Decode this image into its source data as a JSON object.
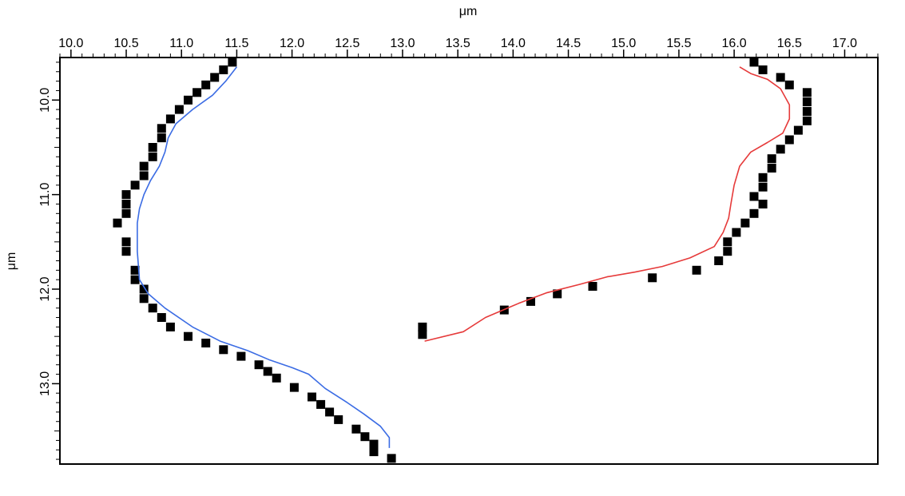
{
  "chart_data": {
    "type": "scatter",
    "x_axis": {
      "label": "μm",
      "position": "top",
      "range": [
        9.9,
        17.3
      ],
      "ticks": [
        "10.0",
        "10.5",
        "11.0",
        "11.5",
        "12.0",
        "12.5",
        "13.0",
        "13.5",
        "14.0",
        "14.5",
        "15.0",
        "15.5",
        "16.0",
        "16.5",
        "17.0"
      ]
    },
    "y_axis": {
      "label": "μm",
      "position": "left",
      "inverted": true,
      "range": [
        9.55,
        13.85
      ],
      "ticks": [
        "10.0",
        "11.0",
        "12.0",
        "13.0"
      ]
    },
    "grid": false,
    "series": [
      {
        "kind": "points",
        "color": "#000000",
        "x": [
          11.46,
          11.38,
          11.3,
          11.22,
          11.14,
          11.06,
          10.98,
          10.9,
          10.82,
          10.82,
          10.74,
          10.74,
          10.66,
          10.66,
          10.58,
          10.5,
          10.5,
          10.5,
          10.42,
          10.5,
          10.5,
          10.58,
          10.58,
          10.66,
          10.66,
          10.74,
          10.82,
          10.9,
          11.06,
          11.22,
          11.38,
          11.54,
          11.7,
          11.78,
          11.86,
          12.02,
          12.18,
          12.26,
          12.34,
          12.42,
          12.58,
          12.66,
          12.74,
          12.74,
          12.9
        ],
        "y": [
          9.6,
          9.68,
          9.76,
          9.84,
          9.92,
          10.0,
          10.1,
          10.2,
          10.3,
          10.4,
          10.5,
          10.6,
          10.7,
          10.8,
          10.9,
          11.0,
          11.1,
          11.2,
          11.3,
          11.5,
          11.6,
          11.8,
          11.9,
          12.0,
          12.1,
          12.2,
          12.3,
          12.4,
          12.5,
          12.57,
          12.64,
          12.71,
          12.8,
          12.87,
          12.94,
          13.04,
          13.14,
          13.22,
          13.3,
          13.38,
          13.48,
          13.56,
          13.64,
          13.72,
          13.79
        ]
      },
      {
        "kind": "line",
        "color": "#3b6ce4",
        "x": [
          11.5,
          11.4,
          11.28,
          11.1,
          10.95,
          10.88,
          10.85,
          10.8,
          10.72,
          10.66,
          10.62,
          10.6,
          10.6,
          10.62,
          10.7,
          10.85,
          11.1,
          11.35,
          11.6,
          11.8,
          12.0,
          12.15,
          12.3,
          12.5,
          12.65,
          12.8,
          12.88,
          12.88
        ],
        "y": [
          9.65,
          9.8,
          9.95,
          10.1,
          10.25,
          10.4,
          10.55,
          10.7,
          10.85,
          11.0,
          11.15,
          11.3,
          11.6,
          11.9,
          12.05,
          12.2,
          12.4,
          12.55,
          12.65,
          12.75,
          12.83,
          12.9,
          13.05,
          13.2,
          13.32,
          13.45,
          13.57,
          13.68
        ]
      },
      {
        "kind": "points",
        "color": "#000000",
        "x": [
          16.18,
          16.26,
          16.42,
          16.5,
          16.66,
          16.66,
          16.66,
          16.66,
          16.58,
          16.5,
          16.42,
          16.34,
          16.34,
          16.26,
          16.26,
          16.18,
          16.26,
          16.18,
          16.1,
          16.02,
          15.94,
          15.94,
          15.86,
          15.66,
          15.26,
          14.72,
          14.4,
          14.16,
          13.92,
          13.18,
          13.18
        ],
        "y": [
          9.6,
          9.68,
          9.76,
          9.84,
          9.92,
          10.02,
          10.12,
          10.22,
          10.32,
          10.42,
          10.52,
          10.62,
          10.72,
          10.82,
          10.92,
          11.02,
          11.1,
          11.2,
          11.3,
          11.4,
          11.5,
          11.6,
          11.7,
          11.8,
          11.88,
          11.97,
          12.05,
          12.13,
          12.22,
          12.4,
          12.48
        ]
      },
      {
        "kind": "line",
        "color": "#e63a3a",
        "x": [
          16.05,
          16.15,
          16.3,
          16.42,
          16.5,
          16.5,
          16.44,
          16.3,
          16.15,
          16.05,
          16.0,
          15.97,
          15.95,
          15.9,
          15.82,
          15.6,
          15.35,
          15.1,
          14.85,
          14.6,
          14.3,
          14.05,
          13.75,
          13.55,
          13.2
        ],
        "y": [
          9.65,
          9.72,
          9.78,
          9.88,
          10.05,
          10.2,
          10.35,
          10.45,
          10.55,
          10.7,
          10.9,
          11.1,
          11.25,
          11.4,
          11.55,
          11.67,
          11.76,
          11.82,
          11.87,
          11.95,
          12.04,
          12.15,
          12.3,
          12.45,
          12.55
        ]
      }
    ]
  }
}
